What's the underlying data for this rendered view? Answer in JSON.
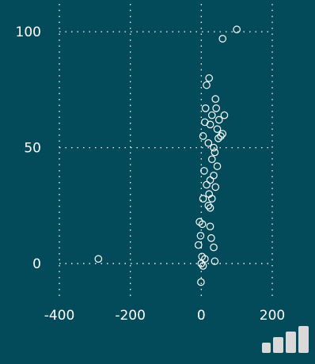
{
  "chart_data": {
    "type": "scatter",
    "title": "",
    "xlabel": "",
    "ylabel": "",
    "xlim": [
      -400,
      200
    ],
    "ylim": [
      -15,
      112
    ],
    "grid": true,
    "legend": "none",
    "x_ticks": [
      "-400",
      "-200",
      "0",
      "200"
    ],
    "y_ticks": [
      "0",
      "50",
      "100"
    ],
    "x_tick_values": [
      -400,
      -200,
      0,
      200
    ],
    "y_tick_values": [
      0,
      50,
      100
    ],
    "colors": {
      "background": "#034a5a",
      "marker": "#ffffff",
      "grid": "#ffffff"
    },
    "series": [
      {
        "points": [
          [
            100,
            101
          ],
          [
            60,
            97
          ],
          [
            -290,
            2
          ],
          [
            -1,
            -8
          ],
          [
            22,
            80
          ],
          [
            15,
            77
          ],
          [
            40,
            71
          ],
          [
            42,
            67
          ],
          [
            12,
            67
          ],
          [
            30,
            64
          ],
          [
            65,
            64
          ],
          [
            50,
            62
          ],
          [
            10,
            61
          ],
          [
            25,
            60
          ],
          [
            45,
            58
          ],
          [
            60,
            56
          ],
          [
            55,
            55
          ],
          [
            48,
            54
          ],
          [
            5,
            55
          ],
          [
            20,
            52
          ],
          [
            35,
            50
          ],
          [
            38,
            48
          ],
          [
            30,
            45
          ],
          [
            45,
            42
          ],
          [
            8,
            40
          ],
          [
            35,
            38
          ],
          [
            25,
            36
          ],
          [
            15,
            34
          ],
          [
            40,
            33
          ],
          [
            22,
            30
          ],
          [
            30,
            28
          ],
          [
            5,
            28
          ],
          [
            20,
            25
          ],
          [
            25,
            24
          ],
          [
            -5,
            18
          ],
          [
            3,
            17
          ],
          [
            25,
            16
          ],
          [
            -2,
            12
          ],
          [
            28,
            11
          ],
          [
            -8,
            8
          ],
          [
            35,
            7
          ],
          [
            2,
            3
          ],
          [
            10,
            2
          ],
          [
            38,
            1
          ],
          [
            0,
            0
          ],
          [
            5,
            -1
          ]
        ]
      }
    ]
  }
}
